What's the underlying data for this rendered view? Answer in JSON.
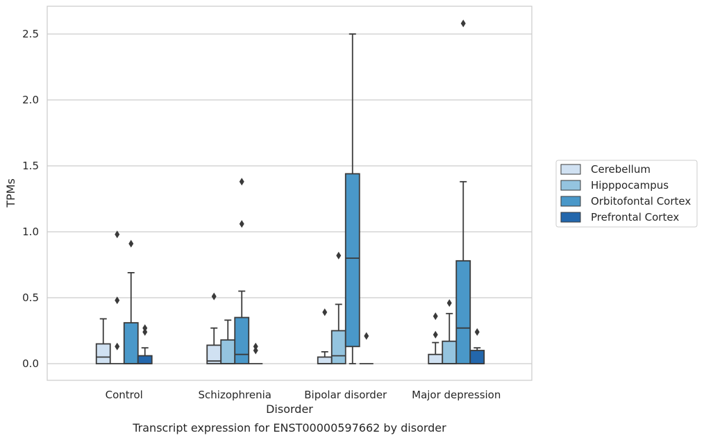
{
  "chart_data": {
    "type": "box",
    "caption": "Transcript expression for ENST00000597662 by disorder",
    "xlabel": "Disorder",
    "ylabel": "TPMs",
    "ylim": [
      -0.13,
      2.72
    ],
    "yticks": [
      "0.0",
      "0.5",
      "1.0",
      "1.5",
      "2.0",
      "2.5"
    ],
    "grid": "horizontal",
    "legend_position": "right",
    "categories": [
      "Control",
      "Schizophrenia",
      "Bipolar disorder",
      "Major depression"
    ],
    "series": [
      {
        "name": "Cerebellum",
        "color": "#d0e1f2",
        "boxes": [
          {
            "whisker_low": 0.0,
            "q1": 0.0,
            "median": 0.05,
            "q3": 0.15,
            "whisker_high": 0.34,
            "outliers": []
          },
          {
            "whisker_low": 0.0,
            "q1": 0.0,
            "median": 0.02,
            "q3": 0.14,
            "whisker_high": 0.27,
            "outliers": [
              0.51
            ]
          },
          {
            "whisker_low": 0.0,
            "q1": 0.0,
            "median": 0.0,
            "q3": 0.05,
            "whisker_high": 0.09,
            "outliers": [
              0.39
            ]
          },
          {
            "whisker_low": 0.0,
            "q1": 0.0,
            "median": 0.0,
            "q3": 0.07,
            "whisker_high": 0.16,
            "outliers": [
              0.22,
              0.36
            ]
          }
        ]
      },
      {
        "name": "Hipppocampus",
        "color": "#94c4df",
        "boxes": [
          {
            "whisker_low": 0.0,
            "q1": 0.0,
            "median": 0.0,
            "q3": 0.0,
            "whisker_high": 0.0,
            "outliers": [
              0.13,
              0.48,
              0.98
            ]
          },
          {
            "whisker_low": 0.0,
            "q1": 0.0,
            "median": 0.0,
            "q3": 0.18,
            "whisker_high": 0.33,
            "outliers": []
          },
          {
            "whisker_low": 0.0,
            "q1": 0.0,
            "median": 0.06,
            "q3": 0.25,
            "whisker_high": 0.45,
            "outliers": [
              0.82
            ]
          },
          {
            "whisker_low": 0.0,
            "q1": 0.0,
            "median": 0.0,
            "q3": 0.17,
            "whisker_high": 0.38,
            "outliers": [
              0.46
            ]
          }
        ]
      },
      {
        "name": "Orbitofontal Cortex",
        "color": "#4a98c9",
        "boxes": [
          {
            "whisker_low": 0.0,
            "q1": 0.0,
            "median": 0.0,
            "q3": 0.31,
            "whisker_high": 0.69,
            "outliers": [
              0.91
            ]
          },
          {
            "whisker_low": 0.0,
            "q1": 0.0,
            "median": 0.07,
            "q3": 0.35,
            "whisker_high": 0.55,
            "outliers": [
              1.06,
              1.38
            ]
          },
          {
            "whisker_low": 0.0,
            "q1": 0.13,
            "median": 0.8,
            "q3": 1.44,
            "whisker_high": 2.5,
            "outliers": []
          },
          {
            "whisker_low": 0.0,
            "q1": 0.0,
            "median": 0.27,
            "q3": 0.78,
            "whisker_high": 1.38,
            "outliers": [
              2.58
            ]
          }
        ]
      },
      {
        "name": "Prefrontal Cortex",
        "color": "#2367ac",
        "boxes": [
          {
            "whisker_low": 0.0,
            "q1": 0.0,
            "median": 0.0,
            "q3": 0.06,
            "whisker_high": 0.12,
            "outliers": [
              0.24,
              0.27
            ]
          },
          {
            "whisker_low": 0.0,
            "q1": 0.0,
            "median": 0.0,
            "q3": 0.0,
            "whisker_high": 0.0,
            "outliers": [
              0.1,
              0.13
            ]
          },
          {
            "whisker_low": 0.0,
            "q1": 0.0,
            "median": 0.0,
            "q3": 0.0,
            "whisker_high": 0.0,
            "outliers": [
              0.21
            ]
          },
          {
            "whisker_low": 0.0,
            "q1": 0.0,
            "median": 0.0,
            "q3": 0.1,
            "whisker_high": 0.12,
            "outliers": [
              0.24
            ]
          }
        ]
      }
    ]
  }
}
